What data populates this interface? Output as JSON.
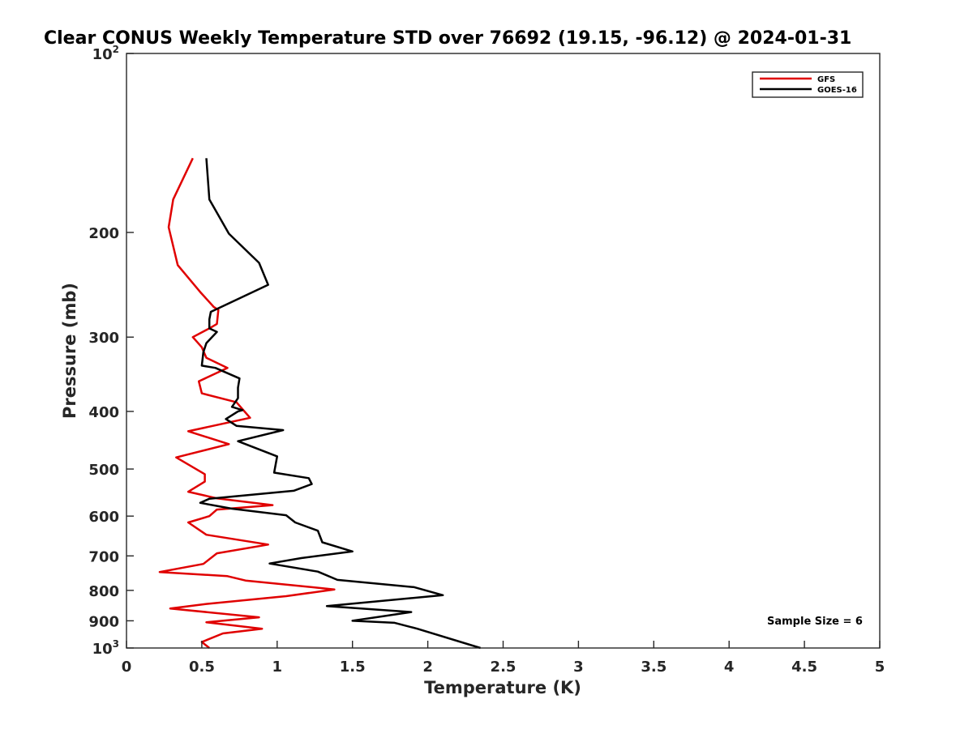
{
  "chart_data": {
    "type": "line",
    "title": "Clear CONUS Weekly Temperature STD over 76692 (19.15, -96.12) @ 2024-01-31",
    "xlabel": "Temperature (K)",
    "ylabel": "Pressure (mb)",
    "xlim": [
      0,
      5
    ],
    "ylim": [
      100,
      1000
    ],
    "yscale": "log",
    "y_reversed": true,
    "xticks": [
      0,
      0.5,
      1,
      1.5,
      2,
      2.5,
      3,
      3.5,
      4,
      4.5,
      5
    ],
    "xtick_labels": [
      "0",
      "0.5",
      "1",
      "1.5",
      "2",
      "2.5",
      "3",
      "3.5",
      "4",
      "4.5",
      "5"
    ],
    "yticks": [
      {
        "value": 100,
        "base": "10",
        "exp": "2"
      },
      {
        "value": 200,
        "label": "200"
      },
      {
        "value": 300,
        "label": "300"
      },
      {
        "value": 400,
        "label": "400"
      },
      {
        "value": 500,
        "label": "500"
      },
      {
        "value": 600,
        "label": "600"
      },
      {
        "value": 700,
        "label": "700"
      },
      {
        "value": 800,
        "label": "800"
      },
      {
        "value": 900,
        "label": "900"
      },
      {
        "value": 1000,
        "base": "10",
        "exp": "3"
      }
    ],
    "legend_position": "top-right",
    "annotation": "Sample Size = 6",
    "series": [
      {
        "name": "GFS",
        "color": "#e00000",
        "x": [
          0.44,
          0.31,
          0.28,
          0.34,
          0.49,
          0.58,
          0.61,
          0.6,
          0.55,
          0.44,
          0.5,
          0.53,
          0.67,
          0.48,
          0.5,
          0.73,
          0.82,
          0.41,
          0.68,
          0.33,
          0.52,
          0.52,
          0.41,
          0.6,
          0.97,
          0.6,
          0.55,
          0.41,
          0.53,
          0.94,
          0.6,
          0.51,
          0.22,
          0.67,
          0.79,
          1.38,
          1.06,
          0.53,
          0.29,
          0.88,
          0.53,
          0.9,
          0.64,
          0.5,
          0.55
        ],
        "y": [
          150,
          176,
          196,
          227,
          252,
          267,
          270,
          285,
          290,
          300,
          312,
          325,
          338,
          356,
          373,
          386,
          410,
          432,
          454,
          478,
          510,
          525,
          546,
          560,
          575,
          585,
          600,
          615,
          645,
          670,
          693,
          722,
          745,
          757,
          770,
          797,
          818,
          843,
          858,
          888,
          905,
          928,
          945,
          977,
          1000
        ]
      },
      {
        "name": "GOES-16",
        "color": "#000000",
        "x": [
          0.53,
          0.55,
          0.68,
          0.88,
          0.94,
          0.56,
          0.55,
          0.55,
          0.6,
          0.53,
          0.51,
          0.5,
          0.59,
          0.75,
          0.74,
          0.74,
          0.7,
          0.77,
          0.74,
          0.66,
          0.73,
          1.04,
          0.74,
          1.0,
          0.98,
          1.21,
          1.23,
          1.11,
          0.55,
          0.49,
          0.7,
          1.06,
          1.12,
          1.27,
          1.3,
          1.5,
          1.16,
          0.95,
          1.27,
          1.4,
          1.91,
          2.1,
          1.33,
          1.89,
          1.5,
          1.78,
          1.93,
          2.35
        ],
        "y": [
          150,
          176,
          201,
          225,
          245,
          272,
          280,
          290,
          294,
          307,
          318,
          335,
          338,
          352,
          365,
          380,
          393,
          398,
          400,
          412,
          423,
          430,
          449,
          476,
          507,
          518,
          530,
          544,
          561,
          570,
          583,
          598,
          615,
          635,
          664,
          688,
          706,
          721,
          744,
          768,
          790,
          815,
          850,
          870,
          900,
          907,
          928,
          1000
        ]
      }
    ]
  }
}
